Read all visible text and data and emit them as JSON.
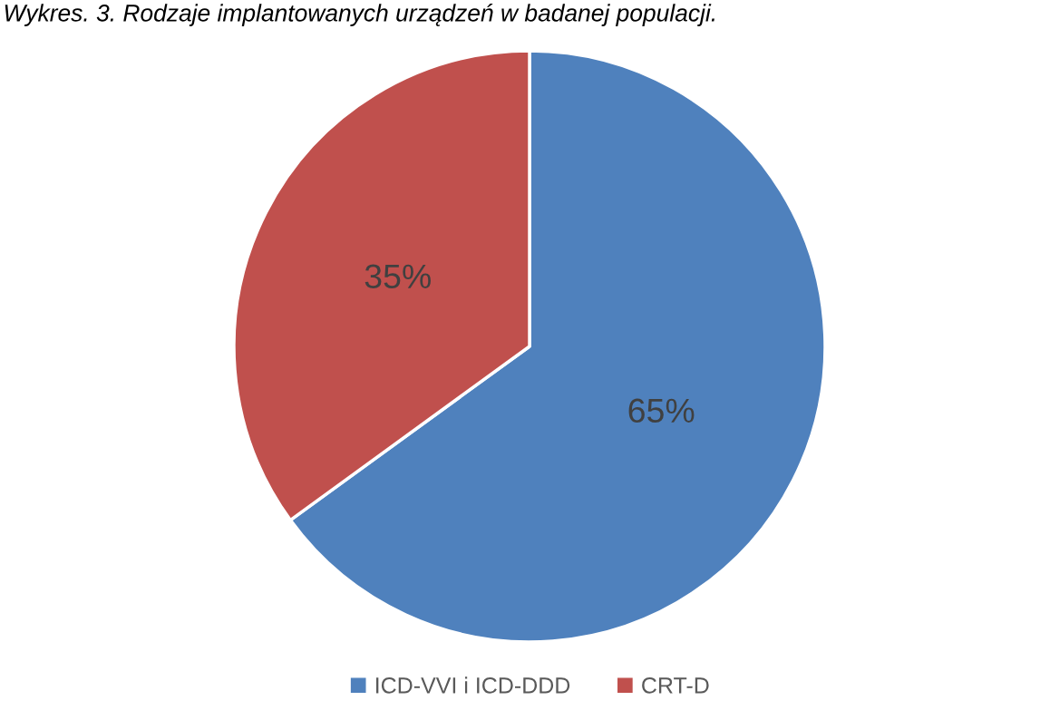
{
  "chart_data": {
    "type": "pie",
    "title": "Wykres. 3. Rodzaje implantowanych urządzeń w badanej populacji.",
    "categories": [
      "ICD-VVI i ICD-DDD",
      "CRT-D"
    ],
    "values": [
      65,
      35
    ],
    "colors": [
      "#4f81bd",
      "#c0504d"
    ],
    "value_labels": [
      "65%",
      "35%"
    ],
    "legend": "bottom"
  }
}
